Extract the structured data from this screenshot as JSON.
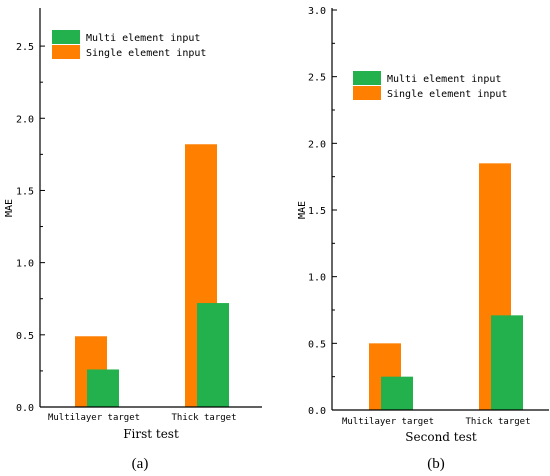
{
  "colors": {
    "multi": "#22b14c",
    "single": "#ff8000"
  },
  "chart_data": [
    {
      "type": "bar",
      "panel_label": "(a)",
      "categories": [
        "Multilayer target",
        "Thick target"
      ],
      "series": [
        {
          "name": "Multi element input",
          "values": [
            0.26,
            0.72
          ]
        },
        {
          "name": "Single element input",
          "values": [
            0.49,
            1.82
          ]
        }
      ],
      "xlabel": "First test",
      "ylabel": "MAE",
      "ylim": [
        0,
        2.75
      ],
      "yticks": [
        0.0,
        0.5,
        1.0,
        1.5,
        2.0,
        2.5
      ],
      "ytick_labels": [
        "0.0",
        "0.5",
        "1.0",
        "1.5",
        "2.0",
        "2.5"
      ],
      "legend": "top-left",
      "grid": false
    },
    {
      "type": "bar",
      "panel_label": "(b)",
      "categories": [
        "Multilayer target",
        "Thick target"
      ],
      "series": [
        {
          "name": "Multi element input",
          "values": [
            0.25,
            0.71
          ]
        },
        {
          "name": "Single element input",
          "values": [
            0.5,
            1.85
          ]
        }
      ],
      "xlabel": "Second test",
      "ylabel": "MAE",
      "ylim": [
        0,
        3.0
      ],
      "yticks": [
        0.0,
        0.5,
        1.0,
        1.5,
        2.0,
        2.5,
        3.0
      ],
      "ytick_labels": [
        "0.0",
        "0.5",
        "1.0",
        "1.5",
        "2.0",
        "2.5",
        "3.0"
      ],
      "legend": "top-left",
      "grid": false
    }
  ]
}
